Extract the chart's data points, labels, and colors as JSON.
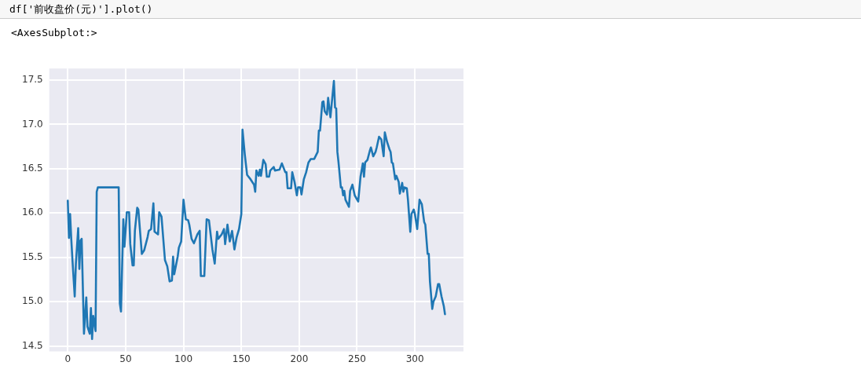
{
  "chart_data": {
    "type": "line",
    "annotations": [
      "df['前收盘价(元)'].plot()",
      "<AxesSubplot:>"
    ],
    "x": [
      0,
      1,
      2,
      3,
      4,
      6,
      7,
      9,
      10,
      11,
      12,
      14,
      16,
      17,
      19,
      20,
      21,
      22,
      24,
      25,
      26,
      44,
      45,
      46,
      48,
      49,
      51,
      53,
      54,
      56,
      57,
      58,
      60,
      61,
      64,
      66,
      69,
      70,
      72,
      74,
      75,
      78,
      79,
      81,
      84,
      86,
      88,
      90,
      91,
      92,
      95,
      96,
      98,
      100,
      102,
      104,
      105,
      107,
      109,
      112,
      114,
      115,
      118,
      120,
      122,
      125,
      127,
      129,
      130,
      133,
      135,
      136,
      138,
      140,
      142,
      144,
      146,
      148,
      150,
      151,
      153,
      155,
      158,
      161,
      162,
      163,
      165,
      166,
      167,
      169,
      171,
      172,
      174,
      175,
      178,
      179,
      183,
      185,
      188,
      189,
      190,
      193,
      194,
      196,
      198,
      199,
      201,
      202,
      204,
      206,
      208,
      210,
      213,
      216,
      217,
      218,
      220,
      221,
      222,
      224,
      225,
      227,
      228,
      230,
      231,
      232,
      233,
      234,
      236,
      237,
      238,
      239,
      240,
      243,
      244,
      246,
      248,
      251,
      253,
      255,
      256,
      257,
      259,
      261,
      262,
      264,
      266,
      267,
      269,
      271,
      272,
      273,
      274,
      276,
      278,
      279,
      280,
      281,
      283,
      284,
      286,
      287,
      289,
      290,
      291,
      293,
      294,
      296,
      297,
      299,
      300,
      302,
      304,
      306,
      308,
      309,
      311,
      312,
      313,
      315,
      316,
      318,
      320,
      321,
      323,
      325,
      326
    ],
    "series": [
      {
        "color": "#1f77b4",
        "values": [
          16.14,
          15.72,
          15.99,
          15.71,
          15.48,
          15.06,
          15.43,
          15.83,
          15.37,
          15.69,
          15.71,
          14.64,
          15.05,
          14.72,
          14.64,
          14.93,
          14.58,
          14.84,
          14.67,
          16.24,
          16.29,
          16.29,
          14.98,
          14.89,
          15.93,
          15.62,
          16.01,
          16.01,
          15.65,
          15.41,
          15.41,
          15.8,
          16.06,
          16.04,
          15.54,
          15.58,
          15.73,
          15.8,
          15.82,
          16.11,
          15.79,
          15.76,
          16.01,
          15.96,
          15.47,
          15.4,
          15.23,
          15.24,
          15.51,
          15.31,
          15.51,
          15.61,
          15.68,
          16.15,
          15.93,
          15.92,
          15.87,
          15.71,
          15.66,
          15.76,
          15.8,
          15.29,
          15.29,
          15.93,
          15.92,
          15.59,
          15.43,
          15.79,
          15.71,
          15.76,
          15.82,
          15.65,
          15.87,
          15.68,
          15.8,
          15.59,
          15.73,
          15.82,
          15.99,
          16.94,
          16.66,
          16.43,
          16.38,
          16.32,
          16.24,
          16.48,
          16.42,
          16.49,
          16.42,
          16.6,
          16.55,
          16.41,
          16.41,
          16.48,
          16.52,
          16.48,
          16.49,
          16.56,
          16.46,
          16.46,
          16.28,
          16.28,
          16.46,
          16.35,
          16.2,
          16.29,
          16.29,
          16.21,
          16.38,
          16.46,
          16.57,
          16.61,
          16.61,
          16.69,
          16.93,
          16.93,
          17.25,
          17.26,
          17.15,
          17.11,
          17.3,
          17.08,
          17.22,
          17.49,
          17.19,
          17.18,
          16.69,
          16.57,
          16.29,
          16.29,
          16.2,
          16.25,
          16.15,
          16.07,
          16.25,
          16.32,
          16.2,
          16.13,
          16.41,
          16.56,
          16.41,
          16.57,
          16.6,
          16.7,
          16.74,
          16.64,
          16.69,
          16.74,
          16.86,
          16.83,
          16.73,
          16.64,
          16.91,
          16.8,
          16.72,
          16.69,
          16.57,
          16.56,
          16.38,
          16.42,
          16.35,
          16.22,
          16.34,
          16.24,
          16.29,
          16.28,
          16.15,
          15.79,
          15.99,
          16.04,
          15.99,
          15.82,
          16.15,
          16.1,
          15.9,
          15.87,
          15.54,
          15.54,
          15.23,
          14.92,
          15.0,
          15.06,
          15.2,
          15.2,
          15.06,
          14.95,
          14.86
        ]
      }
    ],
    "xlim": [
      -16,
      342
    ],
    "xticks": [
      0,
      50,
      100,
      150,
      200,
      250,
      300
    ],
    "ylim": [
      14.44,
      17.63
    ],
    "yticks": [
      14.5,
      {
        "value": 15,
        "label": "15.0"
      },
      15.5,
      {
        "value": 16,
        "label": "16.0"
      },
      16.5,
      {
        "value": 17,
        "label": "17.0"
      },
      17.5
    ],
    "grid": true,
    "marker": "none",
    "line_style": "solid"
  }
}
